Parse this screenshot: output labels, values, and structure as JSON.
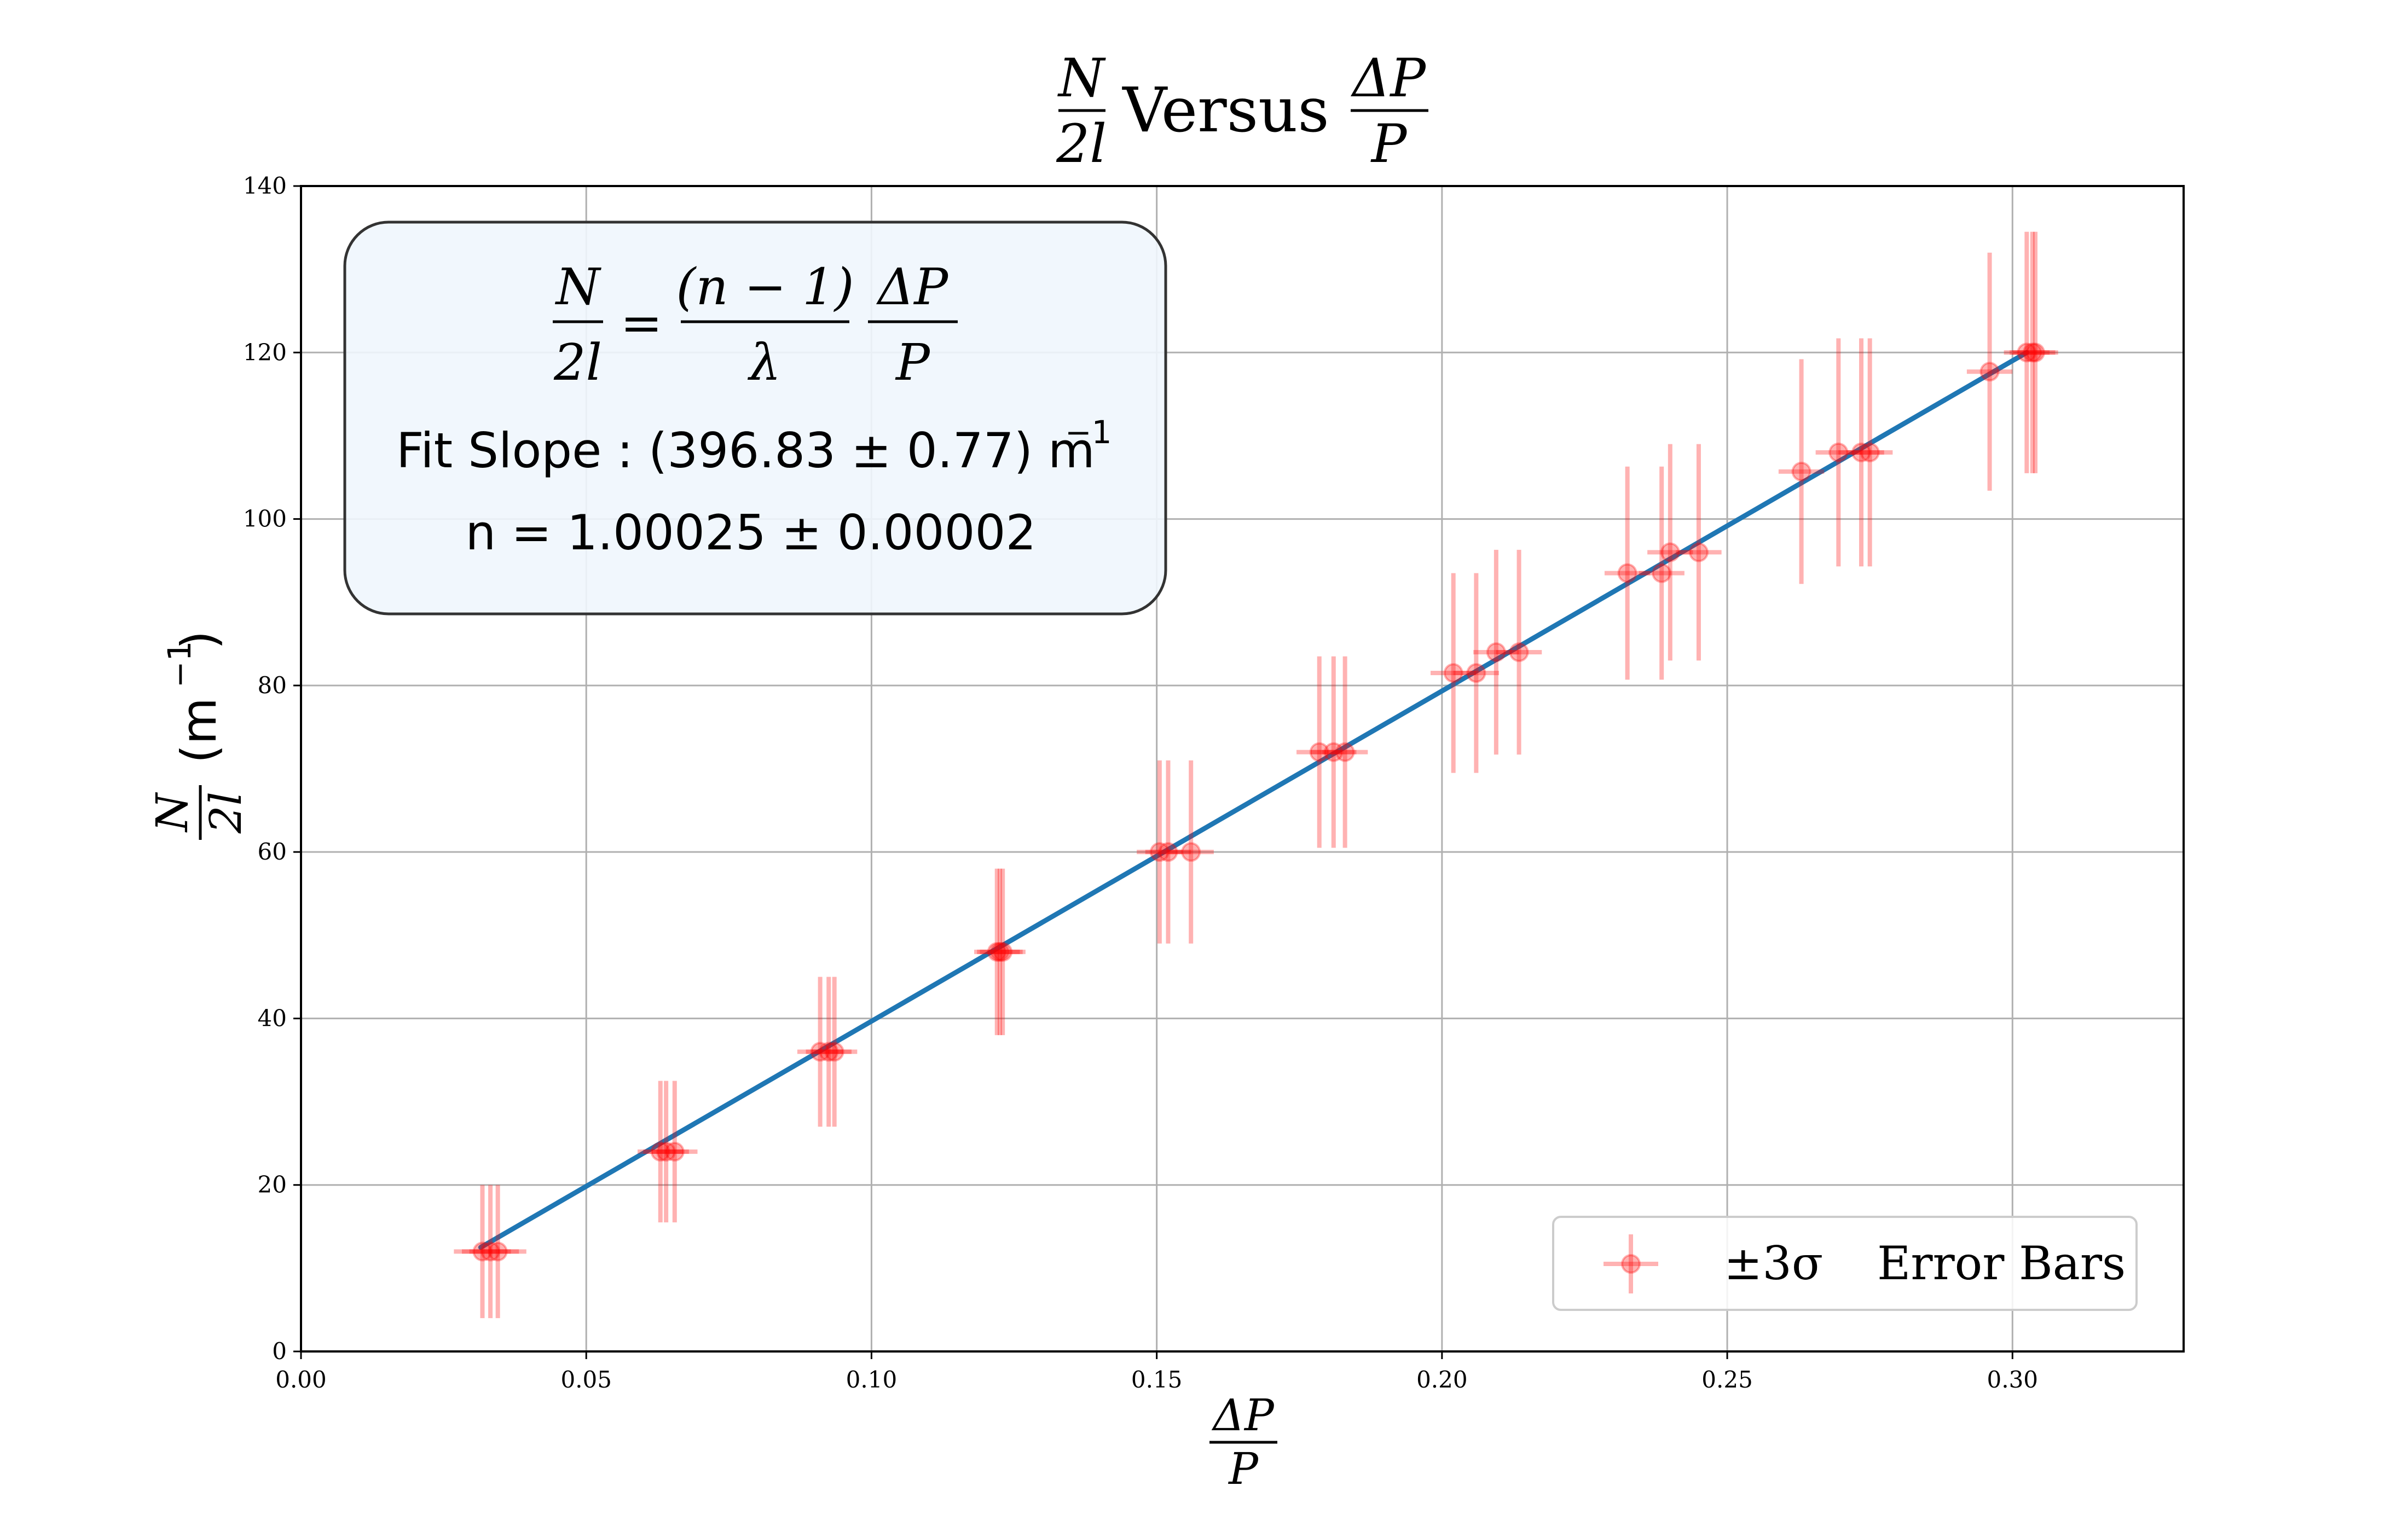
{
  "chart_data": {
    "type": "scatter",
    "title": {
      "frac_num": "N",
      "frac_den": "2l",
      "middle": "Versus",
      "frac2_num": "ΔP",
      "frac2_den": "P"
    },
    "xlabel": {
      "num": "ΔP",
      "den": "P"
    },
    "ylabel": {
      "num": "N",
      "den": "2l",
      "unit": "(m",
      "unit_exp": "−1",
      "unit_close": ")"
    },
    "xlim": [
      0.0,
      0.33
    ],
    "ylim": [
      0,
      140
    ],
    "xticks": [
      "0.00",
      "0.05",
      "0.10",
      "0.15",
      "0.20",
      "0.25",
      "0.30"
    ],
    "xtick_values": [
      0.0,
      0.05,
      0.1,
      0.15,
      0.2,
      0.25,
      0.3
    ],
    "yticks": [
      "0",
      "20",
      "40",
      "60",
      "80",
      "100",
      "120",
      "140"
    ],
    "ytick_values": [
      0,
      20,
      40,
      60,
      80,
      100,
      120,
      140
    ],
    "grid": true,
    "fit_line": {
      "x": [
        0.0315,
        0.3025
      ],
      "y": [
        12.5,
        120.0
      ],
      "color": "#1f77b4"
    },
    "series": [
      {
        "name": "±3σ   Error Bars",
        "color": "#ff0000",
        "points": [
          {
            "x": 0.0318,
            "y": 12.0,
            "xerr": 0.005,
            "yerr": 8.0
          },
          {
            "x": 0.0332,
            "y": 12.0,
            "xerr": 0.005,
            "yerr": 8.0
          },
          {
            "x": 0.0345,
            "y": 12.0,
            "xerr": 0.005,
            "yerr": 8.0
          },
          {
            "x": 0.063,
            "y": 24.0,
            "xerr": 0.004,
            "yerr": 8.5
          },
          {
            "x": 0.064,
            "y": 24.0,
            "xerr": 0.004,
            "yerr": 8.5
          },
          {
            "x": 0.0655,
            "y": 24.0,
            "xerr": 0.004,
            "yerr": 8.5
          },
          {
            "x": 0.091,
            "y": 36.0,
            "xerr": 0.004,
            "yerr": 9.0
          },
          {
            "x": 0.0925,
            "y": 36.0,
            "xerr": 0.004,
            "yerr": 9.0
          },
          {
            "x": 0.0935,
            "y": 36.0,
            "xerr": 0.004,
            "yerr": 9.0
          },
          {
            "x": 0.122,
            "y": 48.0,
            "xerr": 0.004,
            "yerr": 10.0
          },
          {
            "x": 0.1225,
            "y": 48.0,
            "xerr": 0.004,
            "yerr": 10.0
          },
          {
            "x": 0.123,
            "y": 48.0,
            "xerr": 0.004,
            "yerr": 10.0
          },
          {
            "x": 0.1505,
            "y": 60.0,
            "xerr": 0.004,
            "yerr": 11.0
          },
          {
            "x": 0.152,
            "y": 60.0,
            "xerr": 0.004,
            "yerr": 11.0
          },
          {
            "x": 0.156,
            "y": 60.0,
            "xerr": 0.004,
            "yerr": 11.0
          },
          {
            "x": 0.1785,
            "y": 72.0,
            "xerr": 0.004,
            "yerr": 11.5
          },
          {
            "x": 0.181,
            "y": 72.0,
            "xerr": 0.004,
            "yerr": 11.5
          },
          {
            "x": 0.183,
            "y": 72.0,
            "xerr": 0.004,
            "yerr": 11.5
          },
          {
            "x": 0.202,
            "y": 81.5,
            "xerr": 0.004,
            "yerr": 12.0
          },
          {
            "x": 0.206,
            "y": 81.5,
            "xerr": 0.004,
            "yerr": 12.0
          },
          {
            "x": 0.2095,
            "y": 84.0,
            "xerr": 0.004,
            "yerr": 12.3
          },
          {
            "x": 0.2135,
            "y": 84.0,
            "xerr": 0.004,
            "yerr": 12.3
          },
          {
            "x": 0.2325,
            "y": 93.5,
            "xerr": 0.004,
            "yerr": 12.8
          },
          {
            "x": 0.2385,
            "y": 93.5,
            "xerr": 0.004,
            "yerr": 12.8
          },
          {
            "x": 0.24,
            "y": 96.0,
            "xerr": 0.004,
            "yerr": 13.0
          },
          {
            "x": 0.245,
            "y": 96.0,
            "xerr": 0.004,
            "yerr": 13.0
          },
          {
            "x": 0.263,
            "y": 105.7,
            "xerr": 0.004,
            "yerr": 13.5
          },
          {
            "x": 0.2695,
            "y": 108.0,
            "xerr": 0.004,
            "yerr": 13.7
          },
          {
            "x": 0.2735,
            "y": 108.0,
            "xerr": 0.004,
            "yerr": 13.7
          },
          {
            "x": 0.275,
            "y": 108.0,
            "xerr": 0.004,
            "yerr": 13.7
          },
          {
            "x": 0.296,
            "y": 117.7,
            "xerr": 0.004,
            "yerr": 14.3
          },
          {
            "x": 0.3025,
            "y": 120.0,
            "xerr": 0.004,
            "yerr": 14.5
          },
          {
            "x": 0.3035,
            "y": 120.0,
            "xerr": 0.004,
            "yerr": 14.5
          },
          {
            "x": 0.304,
            "y": 120.0,
            "xerr": 0.004,
            "yerr": 14.5
          }
        ]
      }
    ],
    "legend": {
      "position": "lower-right",
      "label_math": "±3σ",
      "label_text": "Error Bars"
    },
    "annotation": {
      "eq_lhs_num": "N",
      "eq_lhs_den": "2l",
      "eq_equals": "=",
      "eq_mid_num": "(n − 1)",
      "eq_mid_den": "λ",
      "eq_rhs_num": "ΔP",
      "eq_rhs_den": "P",
      "slope_text": "Fit Slope : (396.83 ± 0.77) m",
      "slope_exp": "−1",
      "n_text": "n = 1.00025 ± 0.00002"
    }
  }
}
